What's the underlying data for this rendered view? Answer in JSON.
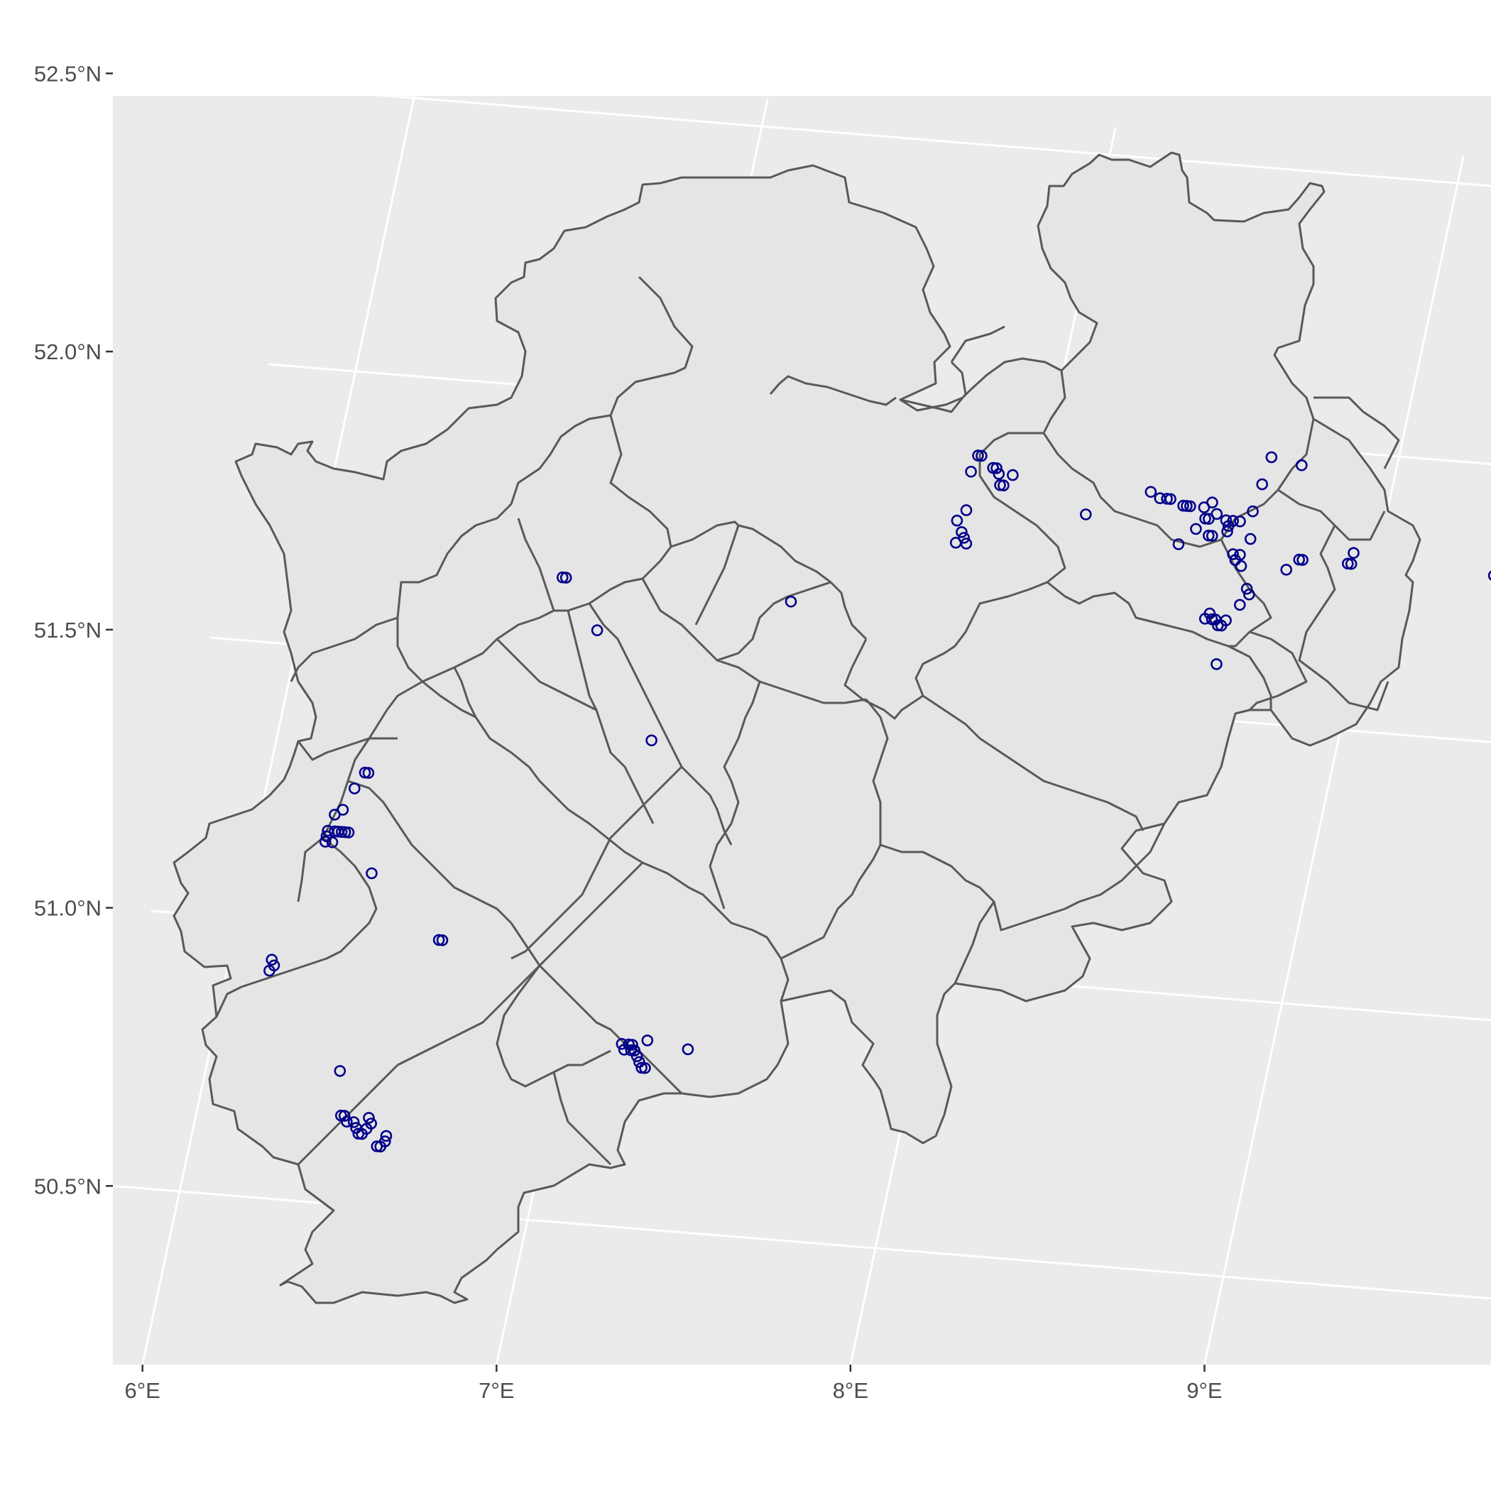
{
  "colors": {
    "panel_background": "#ebebeb",
    "region_fill": "#e5e5e5",
    "region_border": "#595959",
    "gridline": "#ffffff",
    "point": "#00008b"
  },
  "axes": {
    "x_ticks": [
      {
        "value": 6,
        "label": "6°E"
      },
      {
        "value": 7,
        "label": "7°E"
      },
      {
        "value": 8,
        "label": "8°E"
      },
      {
        "value": 9,
        "label": "9°E"
      }
    ],
    "y_ticks": [
      {
        "value": 50.5,
        "label": "50.5°N"
      },
      {
        "value": 51.0,
        "label": "51.0°N"
      },
      {
        "value": 51.5,
        "label": "51.5°N"
      },
      {
        "value": 52.0,
        "label": "52.0°N"
      },
      {
        "value": 52.5,
        "label": "52.5°N"
      }
    ]
  },
  "chart_data": {
    "type": "scatter",
    "map": "district boundaries with point observations",
    "xlim": [
      5.8,
      9.7
    ],
    "ylim": [
      50.2,
      52.5
    ],
    "point_shape": "open circle",
    "points": [
      {
        "lon": 6.71,
        "lat": 51.66
      },
      {
        "lon": 6.72,
        "lat": 51.66
      },
      {
        "lon": 6.84,
        "lat": 51.57
      },
      {
        "lon": 7.37,
        "lat": 51.65
      },
      {
        "lon": 7.06,
        "lat": 51.38
      },
      {
        "lon": 6.28,
        "lat": 51.28
      },
      {
        "lon": 6.27,
        "lat": 51.28
      },
      {
        "lon": 6.25,
        "lat": 51.25
      },
      {
        "lon": 6.23,
        "lat": 51.21
      },
      {
        "lon": 6.21,
        "lat": 51.2
      },
      {
        "lon": 6.2,
        "lat": 51.16
      },
      {
        "lon": 6.2,
        "lat": 51.17
      },
      {
        "lon": 6.22,
        "lat": 51.17
      },
      {
        "lon": 6.23,
        "lat": 51.17
      },
      {
        "lon": 6.24,
        "lat": 51.17
      },
      {
        "lon": 6.25,
        "lat": 51.17
      },
      {
        "lon": 6.26,
        "lat": 51.17
      },
      {
        "lon": 6.22,
        "lat": 51.15
      },
      {
        "lon": 6.2,
        "lat": 51.15
      },
      {
        "lon": 6.35,
        "lat": 51.1
      },
      {
        "lon": 6.58,
        "lat": 50.99
      },
      {
        "lon": 6.59,
        "lat": 50.99
      },
      {
        "lon": 6.12,
        "lat": 50.93
      },
      {
        "lon": 6.13,
        "lat": 50.92
      },
      {
        "lon": 6.12,
        "lat": 50.91
      },
      {
        "lon": 6.38,
        "lat": 50.74
      },
      {
        "lon": 6.41,
        "lat": 50.66
      },
      {
        "lon": 6.42,
        "lat": 50.66
      },
      {
        "lon": 6.43,
        "lat": 50.65
      },
      {
        "lon": 6.45,
        "lat": 50.65
      },
      {
        "lon": 6.46,
        "lat": 50.64
      },
      {
        "lon": 6.47,
        "lat": 50.63
      },
      {
        "lon": 6.48,
        "lat": 50.63
      },
      {
        "lon": 6.49,
        "lat": 50.64
      },
      {
        "lon": 6.49,
        "lat": 50.66
      },
      {
        "lon": 6.5,
        "lat": 50.65
      },
      {
        "lon": 6.53,
        "lat": 50.61
      },
      {
        "lon": 6.54,
        "lat": 50.61
      },
      {
        "lon": 6.55,
        "lat": 50.62
      },
      {
        "lon": 6.55,
        "lat": 50.63
      },
      {
        "lon": 7.16,
        "lat": 50.83
      },
      {
        "lon": 7.17,
        "lat": 50.82
      },
      {
        "lon": 7.18,
        "lat": 50.83
      },
      {
        "lon": 7.19,
        "lat": 50.83
      },
      {
        "lon": 7.19,
        "lat": 50.82
      },
      {
        "lon": 7.2,
        "lat": 50.82
      },
      {
        "lon": 7.21,
        "lat": 50.81
      },
      {
        "lon": 7.22,
        "lat": 50.8
      },
      {
        "lon": 7.23,
        "lat": 50.79
      },
      {
        "lon": 7.24,
        "lat": 50.79
      },
      {
        "lon": 7.23,
        "lat": 50.84
      },
      {
        "lon": 7.35,
        "lat": 50.83
      },
      {
        "lon": 7.81,
        "lat": 51.94
      },
      {
        "lon": 7.82,
        "lat": 51.94
      },
      {
        "lon": 7.8,
        "lat": 51.91
      },
      {
        "lon": 7.86,
        "lat": 51.92
      },
      {
        "lon": 7.87,
        "lat": 51.92
      },
      {
        "lon": 7.88,
        "lat": 51.91
      },
      {
        "lon": 7.92,
        "lat": 51.91
      },
      {
        "lon": 7.89,
        "lat": 51.89
      },
      {
        "lon": 7.9,
        "lat": 51.89
      },
      {
        "lon": 7.81,
        "lat": 51.84
      },
      {
        "lon": 7.79,
        "lat": 51.82
      },
      {
        "lon": 7.81,
        "lat": 51.8
      },
      {
        "lon": 7.82,
        "lat": 51.79
      },
      {
        "lon": 7.83,
        "lat": 51.78
      },
      {
        "lon": 7.8,
        "lat": 51.78
      },
      {
        "lon": 8.15,
        "lat": 51.85
      },
      {
        "lon": 8.32,
        "lat": 51.9
      },
      {
        "lon": 8.35,
        "lat": 51.89
      },
      {
        "lon": 8.37,
        "lat": 51.89
      },
      {
        "lon": 8.38,
        "lat": 51.89
      },
      {
        "lon": 8.42,
        "lat": 51.88
      },
      {
        "lon": 8.43,
        "lat": 51.88
      },
      {
        "lon": 8.44,
        "lat": 51.88
      },
      {
        "lon": 8.48,
        "lat": 51.88
      },
      {
        "lon": 8.5,
        "lat": 51.89
      },
      {
        "lon": 8.52,
        "lat": 51.87
      },
      {
        "lon": 8.49,
        "lat": 51.86
      },
      {
        "lon": 8.5,
        "lat": 51.86
      },
      {
        "lon": 8.47,
        "lat": 51.84
      },
      {
        "lon": 8.43,
        "lat": 51.81
      },
      {
        "lon": 8.51,
        "lat": 51.83
      },
      {
        "lon": 8.52,
        "lat": 51.83
      },
      {
        "lon": 8.55,
        "lat": 51.86
      },
      {
        "lon": 8.56,
        "lat": 51.85
      },
      {
        "lon": 8.57,
        "lat": 51.86
      },
      {
        "lon": 8.59,
        "lat": 51.86
      },
      {
        "lon": 8.56,
        "lat": 51.84
      },
      {
        "lon": 8.62,
        "lat": 51.88
      },
      {
        "lon": 8.63,
        "lat": 51.93
      },
      {
        "lon": 8.64,
        "lat": 51.98
      },
      {
        "lon": 8.73,
        "lat": 51.97
      },
      {
        "lon": 8.63,
        "lat": 51.83
      },
      {
        "lon": 8.59,
        "lat": 51.8
      },
      {
        "lon": 8.6,
        "lat": 51.79
      },
      {
        "lon": 8.61,
        "lat": 51.8
      },
      {
        "lon": 8.62,
        "lat": 51.78
      },
      {
        "lon": 8.65,
        "lat": 51.74
      },
      {
        "lon": 8.66,
        "lat": 51.73
      },
      {
        "lon": 8.64,
        "lat": 51.71
      },
      {
        "lon": 8.55,
        "lat": 51.68
      },
      {
        "lon": 8.56,
        "lat": 51.69
      },
      {
        "lon": 8.57,
        "lat": 51.68
      },
      {
        "lon": 8.58,
        "lat": 51.68
      },
      {
        "lon": 8.59,
        "lat": 51.67
      },
      {
        "lon": 8.6,
        "lat": 51.67
      },
      {
        "lon": 8.61,
        "lat": 51.68
      },
      {
        "lon": 8.61,
        "lat": 51.6
      },
      {
        "lon": 8.75,
        "lat": 51.78
      },
      {
        "lon": 8.78,
        "lat": 51.8
      },
      {
        "lon": 8.79,
        "lat": 51.8
      },
      {
        "lon": 8.92,
        "lat": 51.8
      },
      {
        "lon": 8.93,
        "lat": 51.82
      },
      {
        "lon": 8.93,
        "lat": 51.8
      },
      {
        "lon": 9.34,
        "lat": 51.8
      }
    ]
  }
}
